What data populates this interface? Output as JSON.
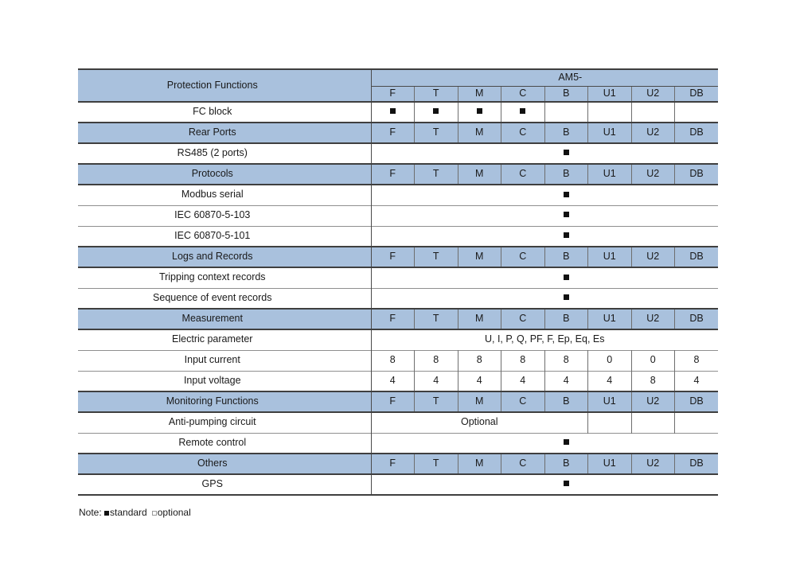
{
  "table": {
    "corner_label": "Protection Functions",
    "group_header": "AM5-",
    "columns": [
      "F",
      "T",
      "M",
      "C",
      "B",
      "U1",
      "U2",
      "DB"
    ],
    "rows": [
      {
        "type": "marks",
        "label": "FC block",
        "marks": [
          1,
          1,
          1,
          1,
          0,
          0,
          0,
          0
        ]
      },
      {
        "type": "section",
        "label": "Rear Ports"
      },
      {
        "type": "single_mark",
        "label": "RS485 (2 ports)",
        "mark_col": 4
      },
      {
        "type": "section",
        "label": "Protocols"
      },
      {
        "type": "single_mark",
        "label": "Modbus serial",
        "mark_col": 4
      },
      {
        "type": "single_mark",
        "label": "IEC 60870-5-103",
        "mark_col": 4
      },
      {
        "type": "single_mark",
        "label": "IEC 60870-5-101",
        "mark_col": 4
      },
      {
        "type": "section",
        "label": "Logs and Records"
      },
      {
        "type": "single_mark",
        "label": "Tripping context records",
        "mark_col": 4
      },
      {
        "type": "single_mark",
        "label": "Sequence of event records",
        "mark_col": 4
      },
      {
        "type": "section",
        "label": "Measurement"
      },
      {
        "type": "span_text",
        "label": "Electric parameter",
        "text": "U, I, P, Q, PF, F, Ep, Eq, Es",
        "span": 8,
        "trailing_empty": 0
      },
      {
        "type": "values",
        "label": "Input current",
        "values": [
          "8",
          "8",
          "8",
          "8",
          "8",
          "0",
          "0",
          "8"
        ]
      },
      {
        "type": "values",
        "label": "Input voltage",
        "values": [
          "4",
          "4",
          "4",
          "4",
          "4",
          "4",
          "8",
          "4"
        ]
      },
      {
        "type": "section",
        "label": "Monitoring Functions"
      },
      {
        "type": "span_text",
        "label": "Anti-pumping circuit",
        "text": "Optional",
        "span": 5,
        "trailing_empty": 3
      },
      {
        "type": "single_mark",
        "label": "Remote control",
        "mark_col": 4
      },
      {
        "type": "section",
        "label": "Others"
      },
      {
        "type": "single_mark",
        "label": "GPS",
        "mark_col": 4
      }
    ]
  },
  "note": {
    "prefix": "Note: ",
    "standard_label": "standard",
    "optional_label": "optional"
  },
  "colors": {
    "header_blue": "#a9c1dd",
    "border_heavy": "#3f3f3f",
    "border_dark": "#4a4a4a",
    "border_mid": "#6e6e6e",
    "border_light": "#8f8f8f",
    "text": "#1a1a1a",
    "mark": "#111111"
  }
}
